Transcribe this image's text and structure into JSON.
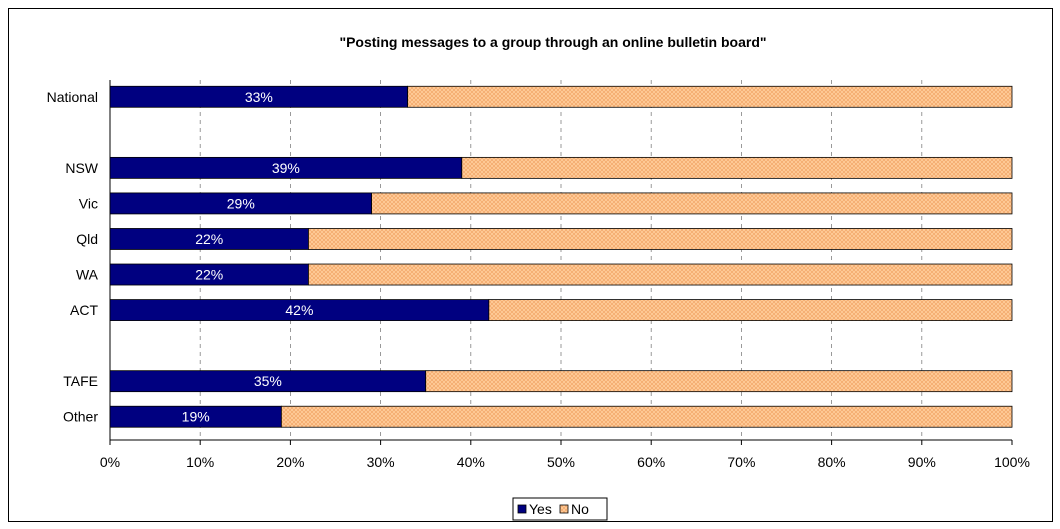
{
  "chart_data": {
    "type": "bar",
    "orientation": "horizontal",
    "stacked": true,
    "title": "\"Posting messages to a group through an online bulletin board\"",
    "categories": [
      "National",
      "",
      "NSW",
      "Vic",
      "Qld",
      "WA",
      "ACT",
      "",
      "TAFE",
      "Other"
    ],
    "series": [
      {
        "name": "Yes",
        "values": [
          33,
          null,
          39,
          29,
          22,
          22,
          42,
          null,
          35,
          19
        ],
        "color": "#000080",
        "pattern": "solid"
      },
      {
        "name": "No",
        "values": [
          67,
          null,
          61,
          71,
          78,
          78,
          58,
          null,
          65,
          81
        ],
        "color": "#FFCC99",
        "pattern": "crosshatch"
      }
    ],
    "data_labels": [
      "33%",
      "",
      "39%",
      "29%",
      "22%",
      "22%",
      "42%",
      "",
      "35%",
      "19%"
    ],
    "xlim": [
      0,
      100
    ],
    "x_ticks": [
      "0%",
      "10%",
      "20%",
      "30%",
      "40%",
      "50%",
      "60%",
      "70%",
      "80%",
      "90%",
      "100%"
    ],
    "xlabel": "",
    "ylabel": "",
    "grid": "vertical dashed",
    "legend": {
      "position": "bottom",
      "entries": [
        "Yes",
        "No"
      ]
    }
  }
}
